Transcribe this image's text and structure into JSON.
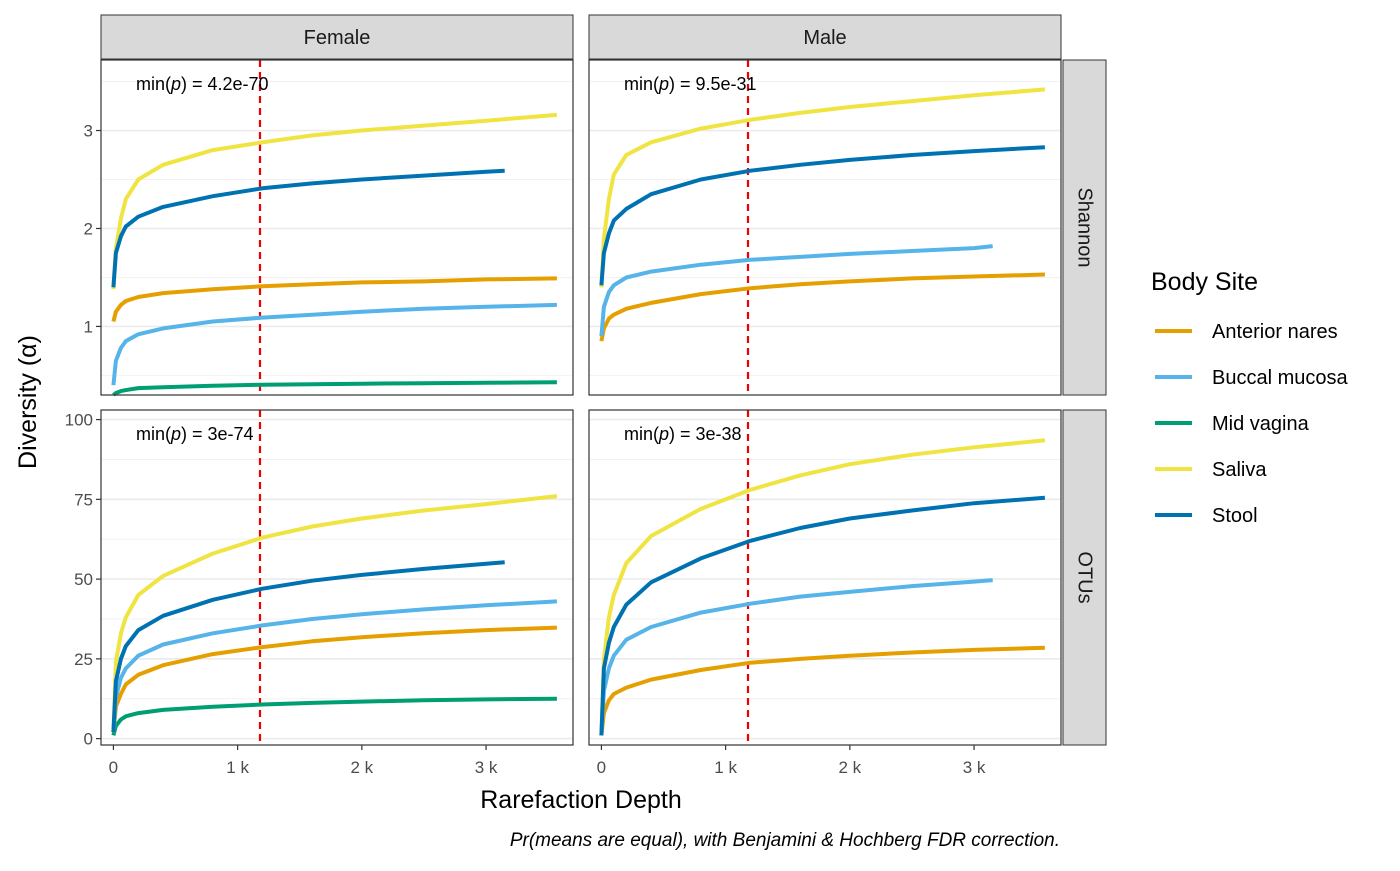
{
  "chart_data": {
    "type": "line",
    "facet_columns": [
      "Female",
      "Male"
    ],
    "facet_rows": [
      "Shannon",
      "OTUs"
    ],
    "xlabel": "Rarefaction Depth",
    "ylabel": "Diversity (α)",
    "x_ticks": [
      {
        "value": 0,
        "label": "0"
      },
      {
        "value": 1000,
        "label": "1 k"
      },
      {
        "value": 2000,
        "label": "2 k"
      },
      {
        "value": 3000,
        "label": "3 k"
      }
    ],
    "xlim": [
      -100,
      3700
    ],
    "rows": [
      {
        "name": "Shannon",
        "ylim": [
          0.3,
          3.72
        ],
        "y_ticks": [
          {
            "value": 1,
            "label": "1"
          },
          {
            "value": 2,
            "label": "2"
          },
          {
            "value": 3,
            "label": "3"
          }
        ]
      },
      {
        "name": "OTUs",
        "ylim": [
          -2,
          103
        ],
        "y_ticks": [
          {
            "value": 0,
            "label": "0"
          },
          {
            "value": 25,
            "label": "25"
          },
          {
            "value": 50,
            "label": "50"
          },
          {
            "value": 75,
            "label": "75"
          },
          {
            "value": 100,
            "label": "100"
          }
        ]
      }
    ],
    "reference_line": {
      "x": 1180,
      "color": "#ee0000"
    },
    "legend": {
      "title": "Body Site",
      "placement": "right",
      "entries": [
        {
          "name": "Anterior nares",
          "color": "#e69f00"
        },
        {
          "name": "Buccal mucosa",
          "color": "#56b4e9"
        },
        {
          "name": "Mid vagina",
          "color": "#009e73"
        },
        {
          "name": "Saliva",
          "color": "#f0e442"
        },
        {
          "name": "Stool",
          "color": "#0072b2"
        }
      ]
    },
    "panels": [
      {
        "column": "Female",
        "row": "Shannon",
        "annotation": {
          "prefix": "min(",
          "italic": "p",
          "suffix": ") = 4.2e-70"
        },
        "series": [
          {
            "name": "Mid vagina",
            "x": [
              0,
              20,
              60,
              100,
              200,
              400,
              800,
              1200,
              1600,
              2000,
              2500,
              3000,
              3570
            ],
            "y": [
              0.3,
              0.32,
              0.34,
              0.35,
              0.37,
              0.38,
              0.395,
              0.405,
              0.41,
              0.415,
              0.42,
              0.425,
              0.43
            ]
          },
          {
            "name": "Buccal mucosa",
            "x": [
              0,
              20,
              60,
              100,
              200,
              400,
              800,
              1200,
              1600,
              2000,
              2500,
              3000,
              3570
            ],
            "y": [
              0.4,
              0.65,
              0.78,
              0.85,
              0.92,
              0.98,
              1.05,
              1.09,
              1.12,
              1.15,
              1.18,
              1.2,
              1.22
            ]
          },
          {
            "name": "Anterior nares",
            "x": [
              0,
              20,
              60,
              100,
              200,
              400,
              800,
              1200,
              1600,
              2000,
              2500,
              3000,
              3570
            ],
            "y": [
              1.05,
              1.15,
              1.22,
              1.26,
              1.3,
              1.34,
              1.38,
              1.41,
              1.43,
              1.45,
              1.46,
              1.48,
              1.49
            ]
          },
          {
            "name": "Saliva",
            "x": [
              0,
              20,
              60,
              100,
              200,
              400,
              800,
              1200,
              1600,
              2000,
              2500,
              3000,
              3570
            ],
            "y": [
              1.38,
              1.8,
              2.1,
              2.3,
              2.5,
              2.65,
              2.8,
              2.88,
              2.95,
              3.0,
              3.05,
              3.1,
              3.16
            ]
          },
          {
            "name": "Stool",
            "x": [
              0,
              20,
              60,
              100,
              200,
              400,
              800,
              1200,
              1600,
              2000,
              2500,
              3000,
              3150
            ],
            "y": [
              1.4,
              1.75,
              1.92,
              2.02,
              2.12,
              2.22,
              2.33,
              2.41,
              2.46,
              2.5,
              2.54,
              2.58,
              2.59
            ]
          }
        ]
      },
      {
        "column": "Male",
        "row": "Shannon",
        "annotation": {
          "prefix": "min(",
          "italic": "p",
          "suffix": ") = 9.5e-31"
        },
        "series": [
          {
            "name": "Anterior nares",
            "x": [
              0,
              20,
              60,
              100,
              200,
              400,
              800,
              1200,
              1600,
              2000,
              2500,
              3000,
              3570
            ],
            "y": [
              0.85,
              0.98,
              1.08,
              1.12,
              1.18,
              1.24,
              1.33,
              1.39,
              1.43,
              1.46,
              1.49,
              1.51,
              1.53
            ]
          },
          {
            "name": "Buccal mucosa",
            "x": [
              0,
              20,
              60,
              100,
              200,
              400,
              800,
              1200,
              1600,
              2000,
              2500,
              3000,
              3150
            ],
            "y": [
              0.9,
              1.2,
              1.35,
              1.42,
              1.5,
              1.56,
              1.63,
              1.68,
              1.71,
              1.74,
              1.77,
              1.8,
              1.82
            ]
          },
          {
            "name": "Saliva",
            "x": [
              0,
              20,
              60,
              100,
              200,
              400,
              800,
              1200,
              1600,
              2000,
              2500,
              3000,
              3570
            ],
            "y": [
              1.4,
              1.9,
              2.3,
              2.55,
              2.75,
              2.88,
              3.02,
              3.11,
              3.18,
              3.24,
              3.3,
              3.36,
              3.42
            ]
          },
          {
            "name": "Stool",
            "x": [
              0,
              20,
              60,
              100,
              200,
              400,
              800,
              1200,
              1600,
              2000,
              2500,
              3000,
              3570
            ],
            "y": [
              1.42,
              1.75,
              1.95,
              2.08,
              2.2,
              2.35,
              2.5,
              2.59,
              2.65,
              2.7,
              2.75,
              2.79,
              2.83
            ]
          }
        ]
      },
      {
        "column": "Female",
        "row": "OTUs",
        "annotation": {
          "prefix": "min(",
          "italic": "p",
          "suffix": ") = 3e-74"
        },
        "series": [
          {
            "name": "Mid vagina",
            "x": [
              0,
              20,
              60,
              100,
              200,
              400,
              800,
              1200,
              1600,
              2000,
              2500,
              3000,
              3570
            ],
            "y": [
              1,
              4,
              6,
              7,
              8,
              9,
              10,
              10.7,
              11.2,
              11.6,
              12,
              12.3,
              12.5
            ]
          },
          {
            "name": "Anterior nares",
            "x": [
              0,
              20,
              60,
              100,
              200,
              400,
              800,
              1200,
              1600,
              2000,
              2500,
              3000,
              3570
            ],
            "y": [
              2,
              10,
              14,
              17,
              20,
              23,
              26.5,
              28.7,
              30.5,
              31.8,
              33,
              34,
              34.8
            ]
          },
          {
            "name": "Buccal mucosa",
            "x": [
              0,
              20,
              60,
              100,
              200,
              400,
              800,
              1200,
              1600,
              2000,
              2500,
              3000,
              3570
            ],
            "y": [
              2,
              13,
              19,
              22,
              26,
              29.5,
              33,
              35.5,
              37.5,
              39,
              40.5,
              41.8,
              43
            ]
          },
          {
            "name": "Saliva",
            "x": [
              0,
              20,
              60,
              100,
              200,
              400,
              800,
              1200,
              1600,
              2000,
              2500,
              3000,
              3570
            ],
            "y": [
              2,
              24,
              33,
              38,
              45,
              51,
              58,
              63,
              66.5,
              69,
              71.5,
              73.5,
              76
            ]
          },
          {
            "name": "Stool",
            "x": [
              0,
              20,
              60,
              100,
              200,
              400,
              800,
              1200,
              1600,
              2000,
              2500,
              3000,
              3150
            ],
            "y": [
              2,
              18,
              25,
              29,
              34,
              38.5,
              43.5,
              47,
              49.5,
              51.3,
              53.2,
              54.8,
              55.3
            ]
          }
        ]
      },
      {
        "column": "Male",
        "row": "OTUs",
        "annotation": {
          "prefix": "min(",
          "italic": "p",
          "suffix": ") = 3e-38"
        },
        "series": [
          {
            "name": "Anterior nares",
            "x": [
              0,
              20,
              60,
              100,
              200,
              400,
              800,
              1200,
              1600,
              2000,
              2500,
              3000,
              3570
            ],
            "y": [
              1,
              8,
              12,
              14,
              16,
              18.5,
              21.5,
              23.8,
              25,
              26,
              27,
              27.8,
              28.5
            ]
          },
          {
            "name": "Buccal mucosa",
            "x": [
              0,
              20,
              60,
              100,
              200,
              400,
              800,
              1200,
              1600,
              2000,
              2500,
              3000,
              3150
            ],
            "y": [
              1,
              15,
              22,
              26,
              31,
              35,
              39.5,
              42.3,
              44.5,
              46,
              47.8,
              49.2,
              49.7
            ]
          },
          {
            "name": "Saliva",
            "x": [
              0,
              20,
              60,
              100,
              200,
              400,
              800,
              1200,
              1600,
              2000,
              2500,
              3000,
              3570
            ],
            "y": [
              1,
              25,
              38,
              45,
              55,
              63.5,
              72,
              78,
              82.5,
              86,
              89,
              91.3,
              93.5
            ]
          },
          {
            "name": "Stool",
            "x": [
              0,
              20,
              60,
              100,
              200,
              400,
              800,
              1200,
              1600,
              2000,
              2500,
              3000,
              3570
            ],
            "y": [
              1,
              22,
              30,
              35,
              42,
              49,
              56.5,
              62,
              66,
              69,
              71.5,
              73.8,
              75.5
            ]
          }
        ]
      }
    ],
    "caption": "Pr(means are equal), with Benjamini & Hochberg FDR correction."
  }
}
